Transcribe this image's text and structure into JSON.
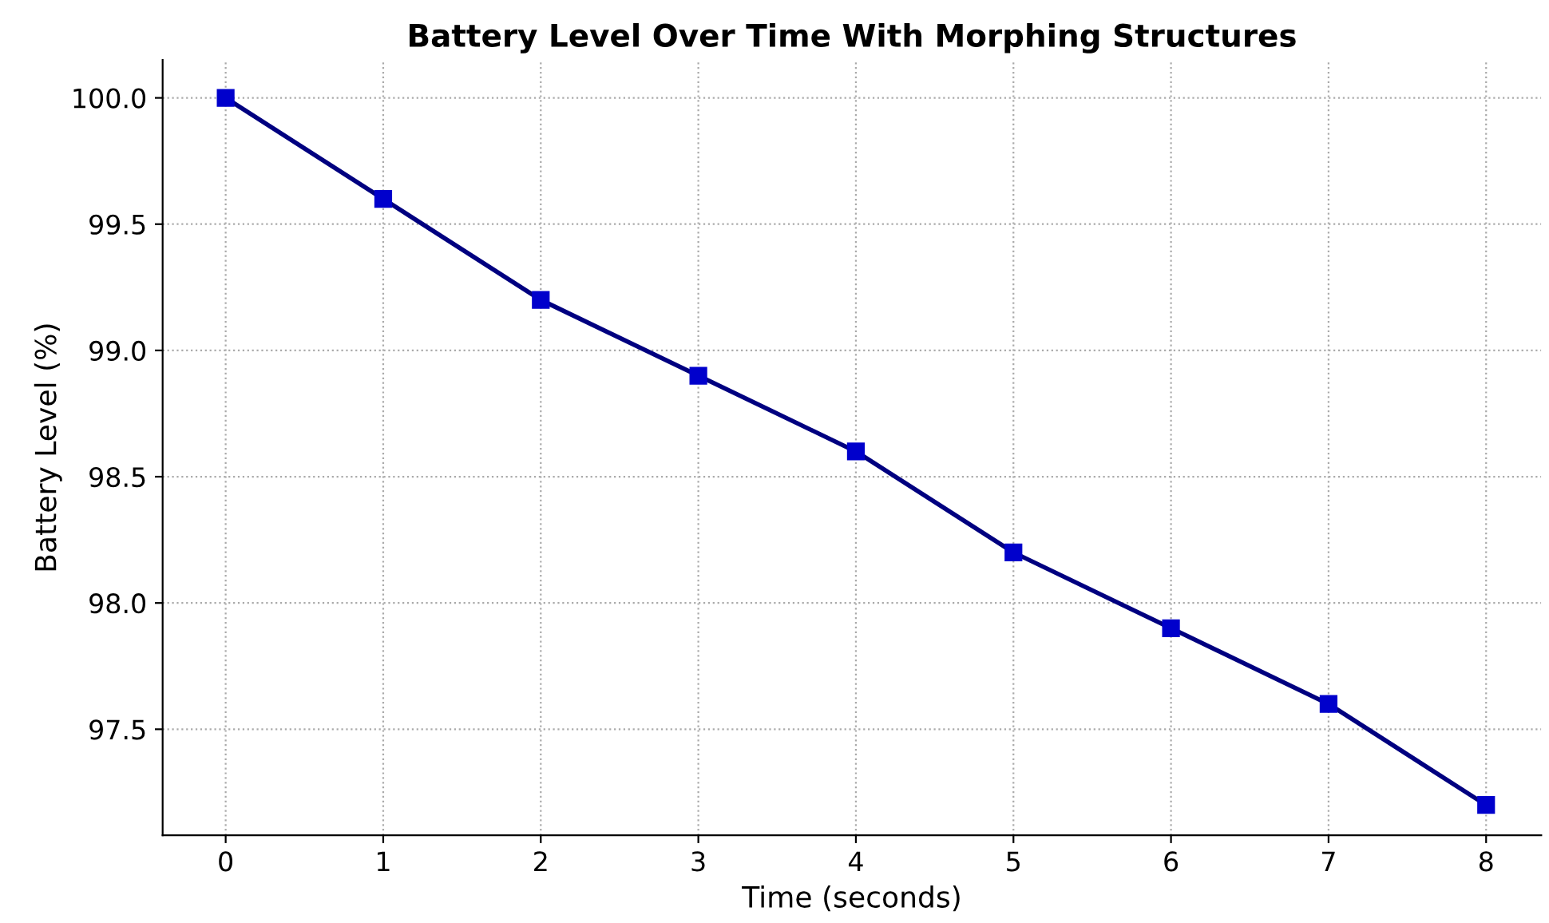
{
  "chart_data": {
    "type": "line",
    "title": "Battery Level Over Time With Morphing Structures",
    "xlabel": "Time (seconds)",
    "ylabel": "Battery Level (%)",
    "x": [
      0,
      1,
      2,
      3,
      4,
      5,
      6,
      7,
      8
    ],
    "series": [
      {
        "color": "#000080",
        "values": [
          100.0,
          99.6,
          99.2,
          98.9,
          98.6,
          98.2,
          97.9,
          97.6,
          97.2
        ]
      }
    ],
    "marker": "square",
    "line_style": "solid",
    "grid": true,
    "xlim": [
      -0.4,
      8.35
    ],
    "ylim": [
      97.08,
      100.15
    ],
    "xticks": [
      0,
      1,
      2,
      3,
      4,
      5,
      6,
      7,
      8
    ],
    "yticks": [
      {
        "value": 97.5,
        "label": "97.5"
      },
      {
        "value": 98.0,
        "label": "98.0"
      },
      {
        "value": 98.5,
        "label": "98.5"
      },
      {
        "value": 99.0,
        "label": "99.0"
      },
      {
        "value": 99.5,
        "label": "99.5"
      },
      {
        "value": 100.0,
        "label": "100.0"
      }
    ]
  }
}
